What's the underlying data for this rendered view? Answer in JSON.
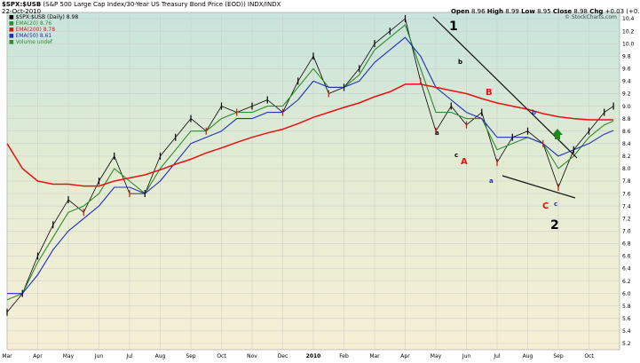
{
  "header": {
    "symbol": "$SPX:$USB",
    "description": "(S&P 500 Large Cap Index/30-Year US Treasury Bond Price (EOD))",
    "exchange": "INDX/INDX",
    "date": "22-Oct-2010",
    "ohlc": [
      {
        "label": "Open",
        "value": "8.96"
      },
      {
        "label": "High",
        "value": "8.99"
      },
      {
        "label": "Low",
        "value": "8.95"
      },
      {
        "label": "Close",
        "value": "8.98"
      },
      {
        "label": "Chg",
        "value": "+0.03 (+0.33%)"
      }
    ],
    "watermark": "© StockCharts.com"
  },
  "legend": [
    {
      "text": "$SPX:$USB (Daily) 8.98",
      "color": "#000000"
    },
    {
      "text": "EMA(20) 8.76",
      "color": "#2e8b2e"
    },
    {
      "text": "EMA(200) 8.78",
      "color": "#e81010"
    },
    {
      "text": "EMA(50) 8.61",
      "color": "#1f2fb8"
    },
    {
      "text": "Volume undef",
      "color": "#2e8b2e"
    }
  ],
  "annotations": {
    "label_1": "1",
    "label_2": "2",
    "label_A": "A",
    "label_B": "B",
    "label_C": "C",
    "small_a1": "a",
    "small_b1": "b",
    "small_c1": "c",
    "small_a2": "a",
    "small_b2": "b",
    "small_c2": "c",
    "arrow": "up-arrow-icon"
  },
  "chart_data": {
    "type": "line",
    "ylim": [
      5.1,
      10.5
    ],
    "yticks": [
      5.2,
      5.4,
      5.6,
      5.8,
      6.0,
      6.2,
      6.4,
      6.6,
      6.8,
      7.0,
      7.2,
      7.4,
      7.6,
      7.8,
      8.0,
      8.2,
      8.4,
      8.6,
      8.8,
      9.0,
      9.2,
      9.4,
      9.6,
      9.8,
      10.0,
      10.2,
      10.4
    ],
    "months": [
      "Mar",
      "Apr",
      "May",
      "Jun",
      "Jul",
      "Aug",
      "Sep",
      "Oct",
      "Nov",
      "Dec",
      "2010",
      "Feb",
      "Mar",
      "Apr",
      "May",
      "Jun",
      "Jul",
      "Aug",
      "Sep",
      "Oct"
    ],
    "x": [
      0,
      0.5,
      1,
      1.5,
      2,
      2.5,
      3,
      3.5,
      4,
      4.5,
      5,
      5.5,
      6,
      6.5,
      7,
      7.5,
      8,
      8.5,
      9,
      9.5,
      10,
      10.5,
      11,
      11.5,
      12,
      12.5,
      13,
      13.5,
      14,
      14.5,
      15,
      15.5,
      16,
      16.5,
      17,
      17.5,
      18,
      18.5,
      19,
      19.5,
      19.8
    ],
    "series": [
      {
        "name": "$SPX:$USB",
        "color": "#000000",
        "values": [
          5.7,
          6.0,
          6.6,
          7.1,
          7.5,
          7.3,
          7.8,
          8.2,
          7.6,
          7.6,
          8.2,
          8.5,
          8.8,
          8.6,
          9.0,
          8.9,
          9.0,
          9.1,
          8.9,
          9.4,
          9.8,
          9.2,
          9.3,
          9.6,
          10.0,
          10.2,
          10.4,
          9.4,
          8.6,
          9.0,
          8.7,
          8.9,
          8.1,
          8.5,
          8.6,
          8.4,
          7.7,
          8.3,
          8.6,
          8.9,
          9.0
        ]
      },
      {
        "name": "EMA(20)",
        "color": "#2e8b2e",
        "values": [
          5.9,
          6.0,
          6.5,
          6.9,
          7.3,
          7.4,
          7.6,
          8.0,
          7.8,
          7.6,
          8.0,
          8.3,
          8.6,
          8.6,
          8.8,
          8.9,
          8.9,
          9.0,
          9.0,
          9.3,
          9.6,
          9.3,
          9.3,
          9.5,
          9.9,
          10.1,
          10.3,
          9.6,
          8.9,
          8.9,
          8.8,
          8.8,
          8.3,
          8.4,
          8.5,
          8.4,
          8.0,
          8.2,
          8.5,
          8.7,
          8.76
        ]
      },
      {
        "name": "EMA(50)",
        "color": "#1f2fb8",
        "values": [
          6.0,
          6.0,
          6.3,
          6.7,
          7.0,
          7.2,
          7.4,
          7.7,
          7.7,
          7.6,
          7.8,
          8.1,
          8.4,
          8.5,
          8.6,
          8.8,
          8.8,
          8.9,
          8.9,
          9.1,
          9.4,
          9.3,
          9.3,
          9.4,
          9.7,
          9.9,
          10.1,
          9.8,
          9.3,
          9.1,
          8.9,
          8.8,
          8.5,
          8.5,
          8.5,
          8.4,
          8.2,
          8.3,
          8.4,
          8.55,
          8.61
        ]
      },
      {
        "name": "EMA(200)",
        "color": "#e81010",
        "values": [
          8.4,
          8.0,
          7.8,
          7.75,
          7.75,
          7.72,
          7.72,
          7.8,
          7.85,
          7.9,
          7.98,
          8.07,
          8.15,
          8.25,
          8.33,
          8.42,
          8.5,
          8.57,
          8.63,
          8.72,
          8.82,
          8.9,
          8.98,
          9.05,
          9.15,
          9.23,
          9.35,
          9.35,
          9.3,
          9.25,
          9.2,
          9.12,
          9.05,
          9.0,
          8.95,
          8.88,
          8.83,
          8.8,
          8.78,
          8.78,
          8.78
        ]
      }
    ]
  }
}
